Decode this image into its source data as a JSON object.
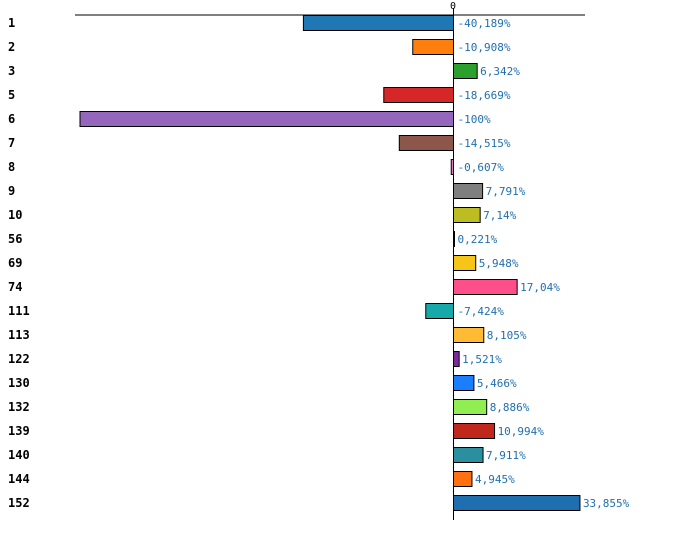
{
  "chart_data": {
    "type": "bar",
    "orientation": "horizontal",
    "title": "",
    "xlabel": "",
    "ylabel": "",
    "xlim": [
      -100,
      35
    ],
    "zero_tick_label": "0",
    "grid": false,
    "categories": [
      "1",
      "2",
      "3",
      "5",
      "6",
      "7",
      "8",
      "9",
      "10",
      "56",
      "69",
      "74",
      "111",
      "113",
      "122",
      "130",
      "132",
      "139",
      "140",
      "144",
      "152"
    ],
    "values": [
      -40.189,
      -10.908,
      6.342,
      -18.669,
      -100,
      -14.515,
      -0.607,
      7.791,
      7.14,
      0.221,
      5.948,
      17.04,
      -7.424,
      8.105,
      1.521,
      5.466,
      8.886,
      10.994,
      7.911,
      4.945,
      33.855
    ],
    "value_labels": [
      "-40,189%",
      "-10,908%",
      "6,342%",
      "-18,669%",
      "-100%",
      "-14,515%",
      "-0,607%",
      "7,791%",
      "7,14%",
      "0,221%",
      "5,948%",
      "17,04%",
      "-7,424%",
      "8,105%",
      "1,521%",
      "5,466%",
      "8,886%",
      "10,994%",
      "7,911%",
      "4,945%",
      "33,855%"
    ],
    "colors": [
      "#1f77b4",
      "#ff7f0e",
      "#2ca02c",
      "#d62728",
      "#9467bd",
      "#8c564b",
      "#e377c2",
      "#7f7f7f",
      "#bcbd22",
      "#17becf",
      "#f5c518",
      "#ff4f8b",
      "#17a9a9",
      "#ffbb33",
      "#7a2a9a",
      "#1a7fff",
      "#90ee50",
      "#c0281c",
      "#2a8f9f",
      "#ff7010",
      "#1f6fb0"
    ]
  }
}
